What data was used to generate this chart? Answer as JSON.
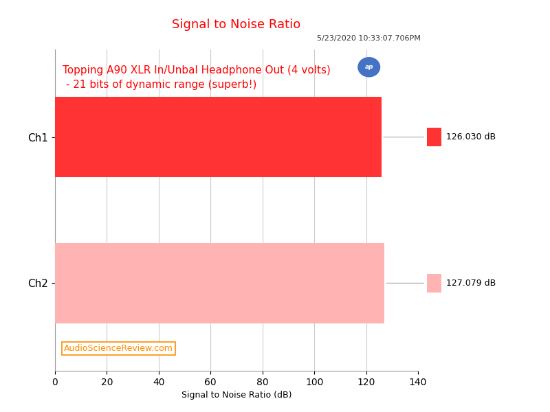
{
  "title": "Signal to Noise Ratio",
  "title_color": "#FF0000",
  "title_fontsize": 13,
  "timestamp": "5/23/2020 10:33:07.706PM",
  "timestamp_fontsize": 8,
  "annotation_line1": "Topping A90 XLR In/Unbal Headphone Out (4 volts)",
  "annotation_line2": " - 21 bits of dynamic range (superb!)",
  "annotation_color": "#FF0000",
  "annotation_fontsize": 11,
  "watermark": "AudioScienceReview.com",
  "watermark_color": "#FF8C00",
  "watermark_fontsize": 9,
  "xlabel": "Signal to Noise Ratio (dB)",
  "xlabel_fontsize": 9,
  "categories": [
    "Ch2",
    "Ch1"
  ],
  "values": [
    127.079,
    126.03
  ],
  "bar_colors": [
    "#FFB3B3",
    "#FF3333"
  ],
  "legend_colors": [
    "#FFB3B3",
    "#FF3333"
  ],
  "legend_labels": [
    "127.079 dB",
    "126.030 dB"
  ],
  "xlim": [
    0,
    140
  ],
  "xticks": [
    0,
    20,
    40,
    60,
    80,
    100,
    120,
    140
  ],
  "bar_height": 0.55,
  "figsize": [
    8.0,
    6.0
  ],
  "dpi": 100,
  "bg_color": "#FFFFFF",
  "plot_bg_color": "#FFFFFF",
  "grid_color": "#CCCCCC",
  "ap_logo_color": "#4472C4"
}
